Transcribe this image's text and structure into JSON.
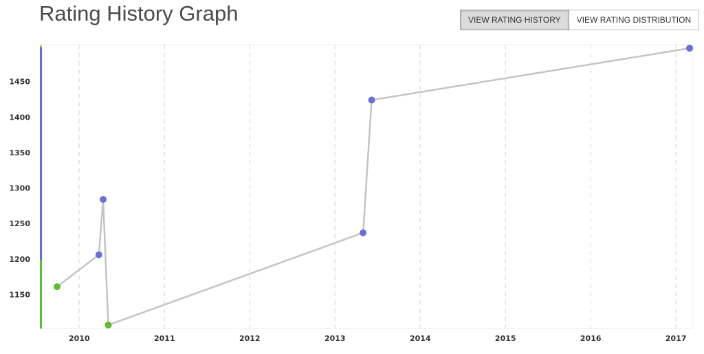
{
  "header": {
    "title": "Rating History Graph",
    "buttons": [
      {
        "label": "VIEW RATING HISTORY",
        "active": true
      },
      {
        "label": "VIEW RATING DISTRIBUTION",
        "active": false
      }
    ]
  },
  "chart_data": {
    "type": "line",
    "x": [
      2009.74,
      2010.23,
      2010.28,
      2010.34,
      2013.33,
      2013.43,
      2017.16
    ],
    "series": [
      {
        "name": "Rating",
        "color": "#c4c4c4",
        "values": [
          1162,
          1207,
          1285,
          1108,
          1238,
          1425,
          1498
        ]
      }
    ],
    "band_thresholds": [
      1200,
      1500
    ],
    "band_colors": [
      "#5dbf2b",
      "#6670d6",
      "#f2d21e"
    ],
    "xlim": [
      2009.57,
      2017.2
    ],
    "xticks": [
      2010,
      2011,
      2012,
      2013,
      2014,
      2015,
      2016,
      2017
    ],
    "ylim": [
      1103,
      1503
    ],
    "yticks": [
      1150,
      1200,
      1250,
      1300,
      1350,
      1400,
      1450
    ],
    "grid": true
  }
}
